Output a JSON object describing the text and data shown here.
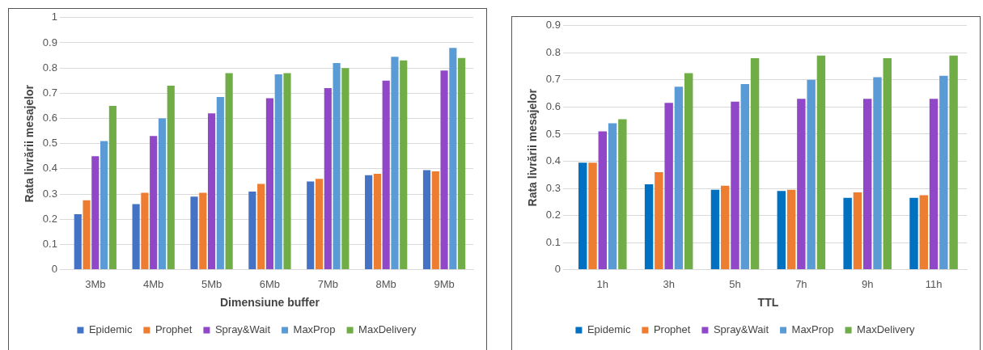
{
  "chart_data": [
    {
      "type": "bar",
      "xlabel": "Dimensiune buffer",
      "ylabel": "Rata livrării mesajelor",
      "categories": [
        "3Mb",
        "4Mb",
        "5Mb",
        "6Mb",
        "7Mb",
        "8Mb",
        "9Mb"
      ],
      "series": [
        {
          "name": "Epidemic",
          "color": "#4472c4",
          "values": [
            0.22,
            0.26,
            0.29,
            0.31,
            0.35,
            0.375,
            0.395
          ]
        },
        {
          "name": "Prophet",
          "color": "#ed7d31",
          "values": [
            0.275,
            0.305,
            0.305,
            0.34,
            0.36,
            0.38,
            0.39
          ]
        },
        {
          "name": "Spray&Wait",
          "color": "#9148c8",
          "values": [
            0.45,
            0.53,
            0.62,
            0.68,
            0.72,
            0.75,
            0.79
          ]
        },
        {
          "name": "MaxProp",
          "color": "#5b9bd5",
          "values": [
            0.51,
            0.6,
            0.685,
            0.775,
            0.82,
            0.845,
            0.88
          ]
        },
        {
          "name": "MaxDelivery",
          "color": "#70ad47",
          "values": [
            0.65,
            0.73,
            0.78,
            0.78,
            0.8,
            0.83,
            0.84
          ]
        }
      ],
      "ylim": [
        0,
        1
      ],
      "yticks": [
        0,
        0.1,
        0.2,
        0.3,
        0.4,
        0.5,
        0.6,
        0.7,
        0.8,
        0.9,
        1
      ],
      "grid": "y",
      "legend": "bottom"
    },
    {
      "type": "bar",
      "xlabel": "TTL",
      "ylabel": "Rata livrării mesajelor",
      "categories": [
        "1h",
        "3h",
        "5h",
        "7h",
        "9h",
        "11h"
      ],
      "series": [
        {
          "name": "Epidemic",
          "color": "#0070c0",
          "values": [
            0.395,
            0.315,
            0.295,
            0.29,
            0.265,
            0.265
          ]
        },
        {
          "name": "Prophet",
          "color": "#ed7d31",
          "values": [
            0.395,
            0.36,
            0.31,
            0.295,
            0.285,
            0.275
          ]
        },
        {
          "name": "Spray&Wait",
          "color": "#9148c8",
          "values": [
            0.51,
            0.615,
            0.62,
            0.63,
            0.63,
            0.63
          ]
        },
        {
          "name": "MaxProp",
          "color": "#5b9bd5",
          "values": [
            0.54,
            0.675,
            0.685,
            0.7,
            0.71,
            0.715
          ]
        },
        {
          "name": "MaxDelivery",
          "color": "#70ad47",
          "values": [
            0.555,
            0.725,
            0.78,
            0.79,
            0.78,
            0.79
          ]
        }
      ],
      "ylim": [
        0,
        0.9
      ],
      "yticks": [
        0,
        0.1,
        0.2,
        0.3,
        0.4,
        0.5,
        0.6,
        0.7,
        0.8,
        0.9
      ],
      "grid": "y",
      "legend": "bottom"
    }
  ]
}
